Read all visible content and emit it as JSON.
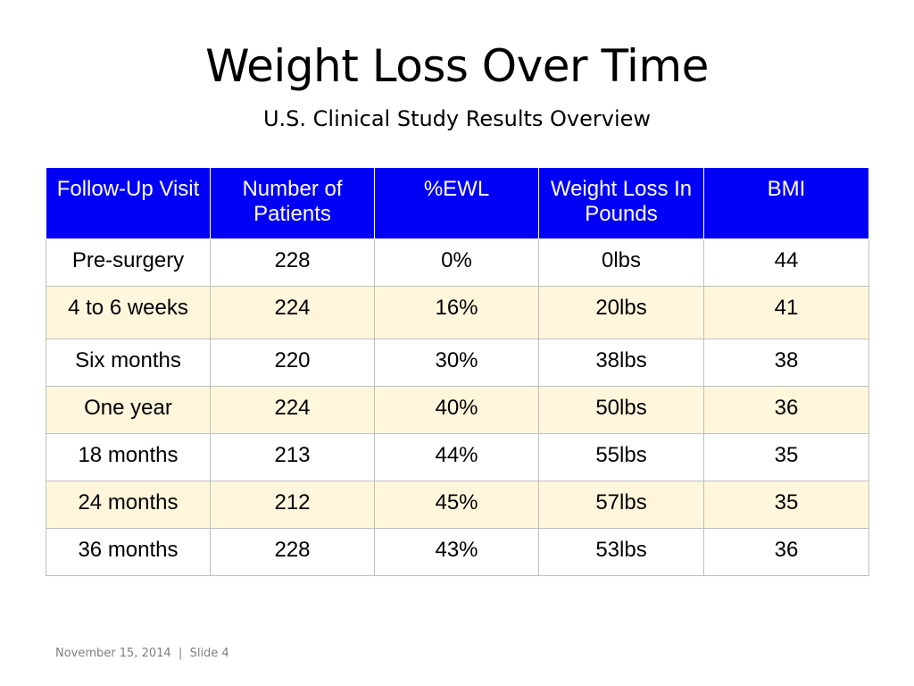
{
  "slide": {
    "title": "Weight Loss Over Time",
    "subtitle": "U.S. Clinical Study Results Overview"
  },
  "table": {
    "columns": [
      "Follow-Up Visit",
      "Number of Patients",
      "%EWL",
      "Weight Loss In Pounds",
      "BMI"
    ],
    "rows": [
      [
        "Pre-surgery",
        "228",
        "0%",
        "0lbs",
        "44"
      ],
      [
        "4 to 6 weeks",
        "224",
        "16%",
        "20lbs",
        "41"
      ],
      [
        "Six months",
        "220",
        "30%",
        "38lbs",
        "38"
      ],
      [
        "One year",
        "224",
        "40%",
        "50lbs",
        "36"
      ],
      [
        "18 months",
        "213",
        "44%",
        "55lbs",
        "35"
      ],
      [
        "24 months",
        "212",
        "45%",
        "57lbs",
        "35"
      ],
      [
        "36 months",
        "228",
        "43%",
        "53lbs",
        "36"
      ]
    ],
    "colors": {
      "header_bg": "#0000f5",
      "header_text": "#ffffff",
      "band_bg": "#fff6dc",
      "border": "#bfbfbf"
    }
  },
  "footer": {
    "date": "November 15, 2014",
    "separator": "|",
    "slide_label": "Slide 4"
  }
}
